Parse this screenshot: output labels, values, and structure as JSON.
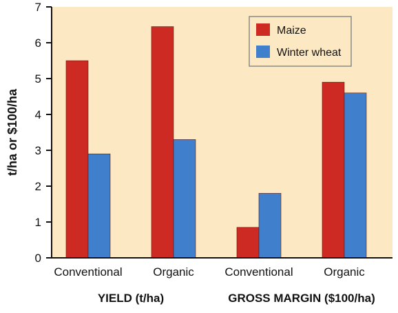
{
  "chart_data": {
    "type": "bar",
    "ylabel": "t/ha or $100/ha",
    "ylim": [
      0,
      7
    ],
    "yticks": [
      "0",
      "1",
      "2",
      "3",
      "4",
      "5",
      "6",
      "7"
    ],
    "categories": [
      "Conventional",
      "Organic",
      "Conventional",
      "Organic"
    ],
    "groups": [
      "YIELD (t/ha)",
      "GROSS MARGIN ($100/ha)"
    ],
    "series": [
      {
        "name": "Maize",
        "values": [
          5.5,
          6.45,
          0.85,
          4.9
        ]
      },
      {
        "name": "Winter wheat",
        "values": [
          2.9,
          3.3,
          1.8,
          4.6
        ]
      }
    ],
    "grid": false,
    "legend_position": "top-right",
    "colors": {
      "plot_background": "#FCE8C2",
      "maize": "#CC2A22",
      "winter_wheat": "#3F7FCC",
      "axis": "#111111"
    }
  }
}
